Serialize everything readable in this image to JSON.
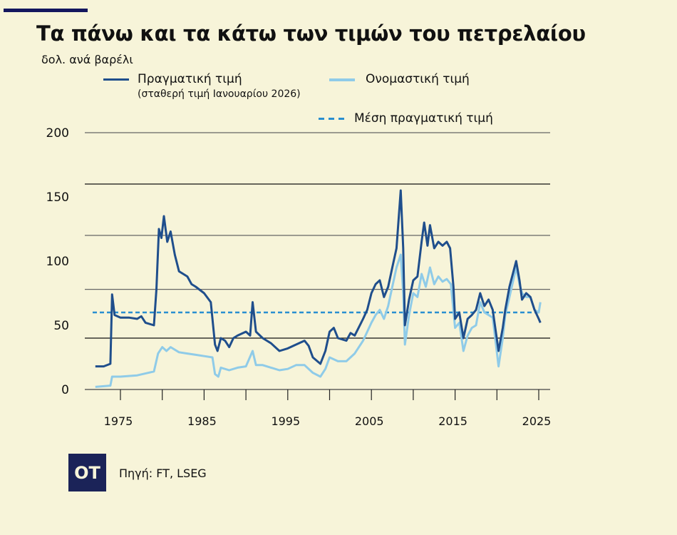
{
  "header": {
    "title": "Τα πάνω και τα κάτω των τιμών του πετρελαίου",
    "unit": "δολ. ανά βαρέλι"
  },
  "legend": {
    "real": "Πραγματική τιμή",
    "real_sub": "(σταθερή τιμή Ιανουαρίου 2026)",
    "nominal": "Ονομαστική τιμή",
    "mean": "Μέση πραγματική τιμή"
  },
  "footer": {
    "logo_text": "OT",
    "source": "Πηγή: FT, LSEG"
  },
  "colors": {
    "background": "#f7f4d9",
    "real": "#1f4e8c",
    "nominal": "#8fcbe8",
    "mean": "#2a8fd0",
    "grid": "#555555",
    "logo_bg": "#1b2358"
  },
  "chart_data": {
    "type": "line",
    "title": "Τα πάνω και τα κάτω των τιμών του πετρελαίου",
    "ylabel": "δολ. ανά βαρέλι",
    "xlabel": "",
    "xlim": [
      1971.5,
      2026.5
    ],
    "ylim": [
      0,
      200
    ],
    "yticks": [
      0,
      50,
      100,
      150,
      200
    ],
    "ytick_labels": [
      "0",
      "50",
      "100",
      "150",
      "200"
    ],
    "gridlines": [
      0,
      40,
      78,
      120,
      160,
      200
    ],
    "xticks": [
      1975,
      1980,
      1985,
      1990,
      1995,
      2000,
      2005,
      2010,
      2015,
      2020,
      2025
    ],
    "xtick_labels": [
      "1975",
      "1985",
      "1995",
      "2005",
      "2015",
      "2025"
    ],
    "xtick_label_years": [
      1975,
      1985,
      1995,
      2005,
      2015,
      2025
    ],
    "mean_real": 60,
    "series": [
      {
        "name": "Πραγματική τιμή",
        "points": [
          [
            1972,
            18
          ],
          [
            1973,
            18
          ],
          [
            1973.8,
            20
          ],
          [
            1974,
            74
          ],
          [
            1974.3,
            58
          ],
          [
            1975,
            56
          ],
          [
            1976,
            56
          ],
          [
            1977,
            55
          ],
          [
            1977.5,
            57
          ],
          [
            1978,
            52
          ],
          [
            1979,
            50
          ],
          [
            1979.3,
            78
          ],
          [
            1979.6,
            125
          ],
          [
            1979.9,
            118
          ],
          [
            1980.2,
            135
          ],
          [
            1980.6,
            115
          ],
          [
            1981,
            123
          ],
          [
            1981.5,
            105
          ],
          [
            1982,
            92
          ],
          [
            1982.5,
            90
          ],
          [
            1983,
            88
          ],
          [
            1983.5,
            82
          ],
          [
            1984,
            80
          ],
          [
            1985,
            75
          ],
          [
            1985.8,
            68
          ],
          [
            1986.3,
            35
          ],
          [
            1986.6,
            30
          ],
          [
            1987,
            40
          ],
          [
            1987.5,
            38
          ],
          [
            1988,
            33
          ],
          [
            1988.5,
            40
          ],
          [
            1989,
            42
          ],
          [
            1990,
            45
          ],
          [
            1990.5,
            42
          ],
          [
            1990.8,
            68
          ],
          [
            1991.2,
            45
          ],
          [
            1992,
            40
          ],
          [
            1992.5,
            38
          ],
          [
            1993,
            36
          ],
          [
            1994,
            30
          ],
          [
            1995,
            32
          ],
          [
            1996,
            35
          ],
          [
            1997,
            38
          ],
          [
            1997.5,
            34
          ],
          [
            1998,
            25
          ],
          [
            1998.9,
            20
          ],
          [
            1999.5,
            30
          ],
          [
            2000,
            45
          ],
          [
            2000.5,
            48
          ],
          [
            2001,
            40
          ],
          [
            2002,
            38
          ],
          [
            2002.5,
            44
          ],
          [
            2003,
            42
          ],
          [
            2004,
            55
          ],
          [
            2004.5,
            62
          ],
          [
            2005,
            75
          ],
          [
            2005.5,
            82
          ],
          [
            2006,
            85
          ],
          [
            2006.5,
            72
          ],
          [
            2007,
            80
          ],
          [
            2007.5,
            95
          ],
          [
            2008,
            110
          ],
          [
            2008.5,
            155
          ],
          [
            2008.8,
            110
          ],
          [
            2009,
            50
          ],
          [
            2009.5,
            70
          ],
          [
            2010,
            85
          ],
          [
            2010.5,
            88
          ],
          [
            2011,
            115
          ],
          [
            2011.3,
            130
          ],
          [
            2011.7,
            112
          ],
          [
            2012,
            128
          ],
          [
            2012.5,
            110
          ],
          [
            2013,
            115
          ],
          [
            2013.5,
            112
          ],
          [
            2014,
            115
          ],
          [
            2014.4,
            110
          ],
          [
            2014.8,
            80
          ],
          [
            2015,
            55
          ],
          [
            2015.5,
            60
          ],
          [
            2016,
            40
          ],
          [
            2016.5,
            55
          ],
          [
            2017,
            58
          ],
          [
            2017.5,
            62
          ],
          [
            2018,
            75
          ],
          [
            2018.5,
            65
          ],
          [
            2019,
            70
          ],
          [
            2019.5,
            62
          ],
          [
            2020.2,
            30
          ],
          [
            2020.7,
            48
          ],
          [
            2021,
            62
          ],
          [
            2021.5,
            80
          ],
          [
            2022.3,
            100
          ],
          [
            2022.7,
            85
          ],
          [
            2023,
            70
          ],
          [
            2023.5,
            75
          ],
          [
            2024,
            72
          ],
          [
            2024.5,
            62
          ],
          [
            2025,
            55
          ],
          [
            2025.2,
            52
          ]
        ]
      },
      {
        "name": "Ονομαστική τιμή",
        "points": [
          [
            1972,
            2
          ],
          [
            1973.8,
            3
          ],
          [
            1974,
            10
          ],
          [
            1975,
            10
          ],
          [
            1977,
            11
          ],
          [
            1979,
            14
          ],
          [
            1979.5,
            28
          ],
          [
            1980,
            33
          ],
          [
            1980.5,
            30
          ],
          [
            1981,
            33
          ],
          [
            1982,
            29
          ],
          [
            1983,
            28
          ],
          [
            1984,
            27
          ],
          [
            1985,
            26
          ],
          [
            1986,
            25
          ],
          [
            1986.3,
            12
          ],
          [
            1986.7,
            10
          ],
          [
            1987,
            17
          ],
          [
            1988,
            15
          ],
          [
            1989,
            17
          ],
          [
            1990,
            18
          ],
          [
            1990.8,
            30
          ],
          [
            1991.2,
            19
          ],
          [
            1992,
            19
          ],
          [
            1993,
            17
          ],
          [
            1994,
            15
          ],
          [
            1995,
            16
          ],
          [
            1996,
            19
          ],
          [
            1997,
            19
          ],
          [
            1998,
            13
          ],
          [
            1998.9,
            10
          ],
          [
            1999.5,
            16
          ],
          [
            2000,
            25
          ],
          [
            2001,
            22
          ],
          [
            2002,
            22
          ],
          [
            2003,
            28
          ],
          [
            2004,
            38
          ],
          [
            2005,
            52
          ],
          [
            2005.5,
            58
          ],
          [
            2006,
            62
          ],
          [
            2006.5,
            55
          ],
          [
            2007,
            65
          ],
          [
            2007.5,
            80
          ],
          [
            2008,
            95
          ],
          [
            2008.5,
            105
          ],
          [
            2008.8,
            75
          ],
          [
            2009,
            35
          ],
          [
            2009.5,
            58
          ],
          [
            2010,
            75
          ],
          [
            2010.5,
            72
          ],
          [
            2011,
            90
          ],
          [
            2011.5,
            80
          ],
          [
            2012,
            95
          ],
          [
            2012.5,
            82
          ],
          [
            2013,
            88
          ],
          [
            2013.5,
            84
          ],
          [
            2014,
            86
          ],
          [
            2014.5,
            82
          ],
          [
            2015,
            48
          ],
          [
            2015.5,
            52
          ],
          [
            2016,
            30
          ],
          [
            2016.5,
            42
          ],
          [
            2017,
            48
          ],
          [
            2017.5,
            50
          ],
          [
            2018,
            68
          ],
          [
            2018.5,
            60
          ],
          [
            2019,
            58
          ],
          [
            2019.5,
            56
          ],
          [
            2020.2,
            18
          ],
          [
            2020.7,
            40
          ],
          [
            2021,
            58
          ],
          [
            2021.5,
            72
          ],
          [
            2022.3,
            95
          ],
          [
            2022.7,
            82
          ],
          [
            2023,
            75
          ],
          [
            2023.5,
            72
          ],
          [
            2024,
            72
          ],
          [
            2024.5,
            62
          ],
          [
            2025,
            60
          ],
          [
            2025.2,
            68
          ]
        ]
      }
    ]
  }
}
